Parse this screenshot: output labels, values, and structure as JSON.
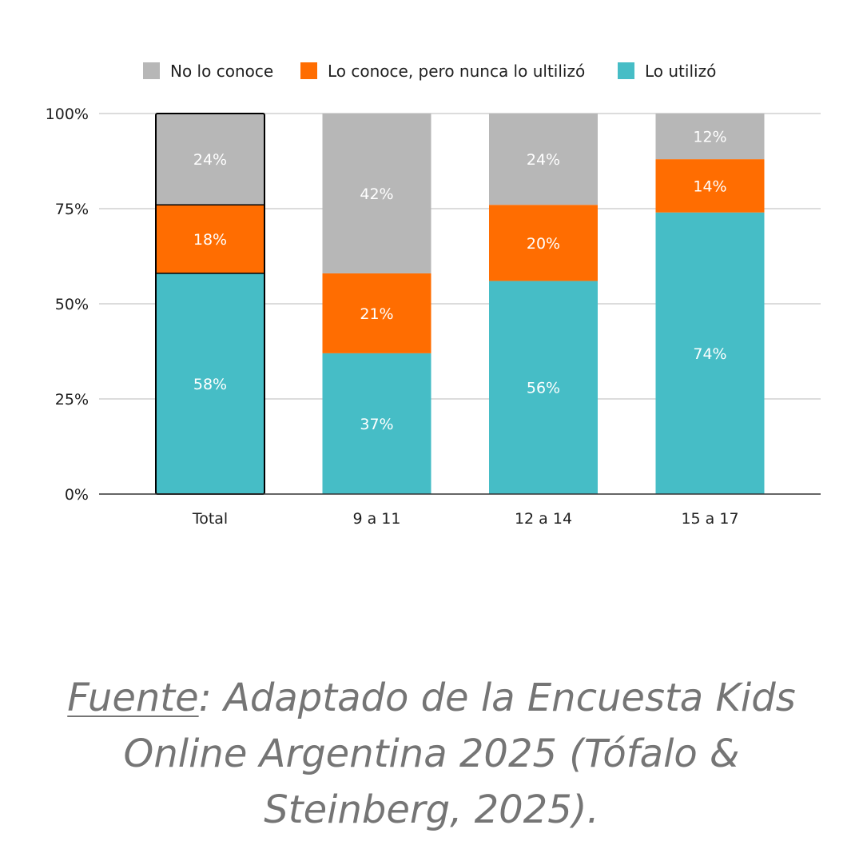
{
  "colors": {
    "no_lo_conoce": "#b7b7b7",
    "lo_conoce": "#ff6d01",
    "lo_utilizo": "#46bdc6",
    "gridline": "#d0d0d0",
    "axis": "#333333"
  },
  "chart_data": {
    "type": "bar",
    "stacked": true,
    "percent": true,
    "categories": [
      "Total",
      "9 a 11",
      "12 a 14",
      "15 a 17"
    ],
    "series": [
      {
        "name": "Lo utilizó",
        "color_key": "lo_utilizo",
        "values": [
          58,
          37,
          56,
          74
        ],
        "labels": [
          "58%",
          "37%",
          "56%",
          "74%"
        ]
      },
      {
        "name": "Lo conoce, pero nunca lo ultilizó",
        "color_key": "lo_conoce",
        "values": [
          18,
          21,
          20,
          14
        ],
        "labels": [
          "18%",
          "21%",
          "20%",
          "14%"
        ]
      },
      {
        "name": "No lo conoce",
        "color_key": "no_lo_conoce",
        "values": [
          24,
          42,
          24,
          12
        ],
        "labels": [
          "24%",
          "42%",
          "24%",
          "12%"
        ]
      }
    ],
    "legend": {
      "position": "top",
      "order": [
        "No lo conoce",
        "Lo conoce, pero nunca lo ultilizó",
        "Lo utilizó"
      ]
    },
    "y_ticks": [
      0,
      25,
      50,
      75,
      100
    ],
    "y_tick_labels": [
      "0%",
      "25%",
      "50%",
      "75%",
      "100%"
    ],
    "ylim": [
      0,
      100
    ],
    "grid": true,
    "highlighted_category": "Total",
    "title": "",
    "xlabel": "",
    "ylabel": ""
  },
  "caption": {
    "source_word": "Fuente",
    "text": ": Adaptado de la Encuesta Kids Online Argentina 2025 (Tófalo & Steinberg, 2025)."
  }
}
